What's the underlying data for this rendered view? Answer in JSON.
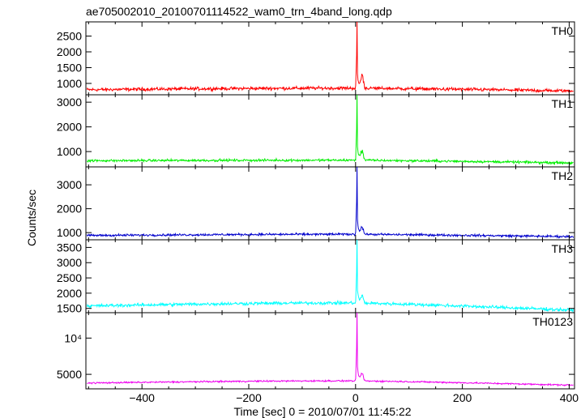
{
  "chart_data": {
    "type": "line",
    "title": "ae705002010_20100701114522_wam0_trn_4band_long.qdp",
    "xlabel": "Time [sec] 0 = 2010/07/01 11:45:22",
    "ylabel": "Counts/sec",
    "xlim": [
      -505,
      410
    ],
    "x_ticks": [
      -400,
      -200,
      0,
      200,
      400
    ],
    "x_tick_labels": [
      "−400",
      "−200",
      "0",
      "200",
      "400"
    ],
    "grid": false,
    "panels": [
      {
        "name": "TH0",
        "color": "#ff0000",
        "ylim": [
          640,
          2950
        ],
        "yticks": [
          1000,
          1500,
          2000,
          2500
        ],
        "ytick_labels": [
          "1000",
          "1500",
          "2000",
          "2500"
        ],
        "baseline_start": 800,
        "baseline_mid": 850,
        "baseline_end": 760,
        "noise": 45,
        "peak_x": 2,
        "peak_y": 2980,
        "secondary_peak_x": 12,
        "secondary_peak_y": 1350
      },
      {
        "name": "TH1",
        "color": "#00ee00",
        "ylim": [
          380,
          3300
        ],
        "yticks": [
          1000,
          2000,
          3000
        ],
        "ytick_labels": [
          "1000",
          "2000",
          "3000"
        ],
        "baseline_start": 630,
        "baseline_mid": 650,
        "baseline_end": 540,
        "noise": 40,
        "peak_x": 2,
        "peak_y": 3300,
        "secondary_peak_x": 12,
        "secondary_peak_y": 1150
      },
      {
        "name": "TH2",
        "color": "#0000cc",
        "ylim": [
          700,
          3750
        ],
        "yticks": [
          1000,
          2000,
          3000
        ],
        "ytick_labels": [
          "1000",
          "2000",
          "3000"
        ],
        "baseline_start": 880,
        "baseline_mid": 930,
        "baseline_end": 830,
        "noise": 40,
        "peak_x": 2,
        "peak_y": 3800,
        "secondary_peak_x": 12,
        "secondary_peak_y": 1300
      },
      {
        "name": "TH3",
        "color": "#00ffff",
        "ylim": [
          1360,
          3750
        ],
        "yticks": [
          1500,
          2000,
          2500,
          3000,
          3500
        ],
        "ytick_labels": [
          "1500",
          "2000",
          "2500",
          "3000",
          "3500"
        ],
        "baseline_start": 1580,
        "baseline_mid": 1680,
        "baseline_end": 1440,
        "noise": 45,
        "peak_x": 2,
        "peak_y": 3750,
        "secondary_peak_x": 12,
        "secondary_peak_y": 1950
      },
      {
        "name": "TH0123",
        "color": "#ee00ee",
        "ylim": [
          3000,
          13500
        ],
        "yticks": [
          5000,
          10000
        ],
        "ytick_labels": [
          "5000",
          "10⁴"
        ],
        "baseline_start": 3800,
        "baseline_mid": 4100,
        "baseline_end": 3500,
        "noise": 90,
        "peak_x": 2,
        "peak_y": 13500,
        "secondary_peak_x": 12,
        "secondary_peak_y": 5300
      }
    ]
  }
}
